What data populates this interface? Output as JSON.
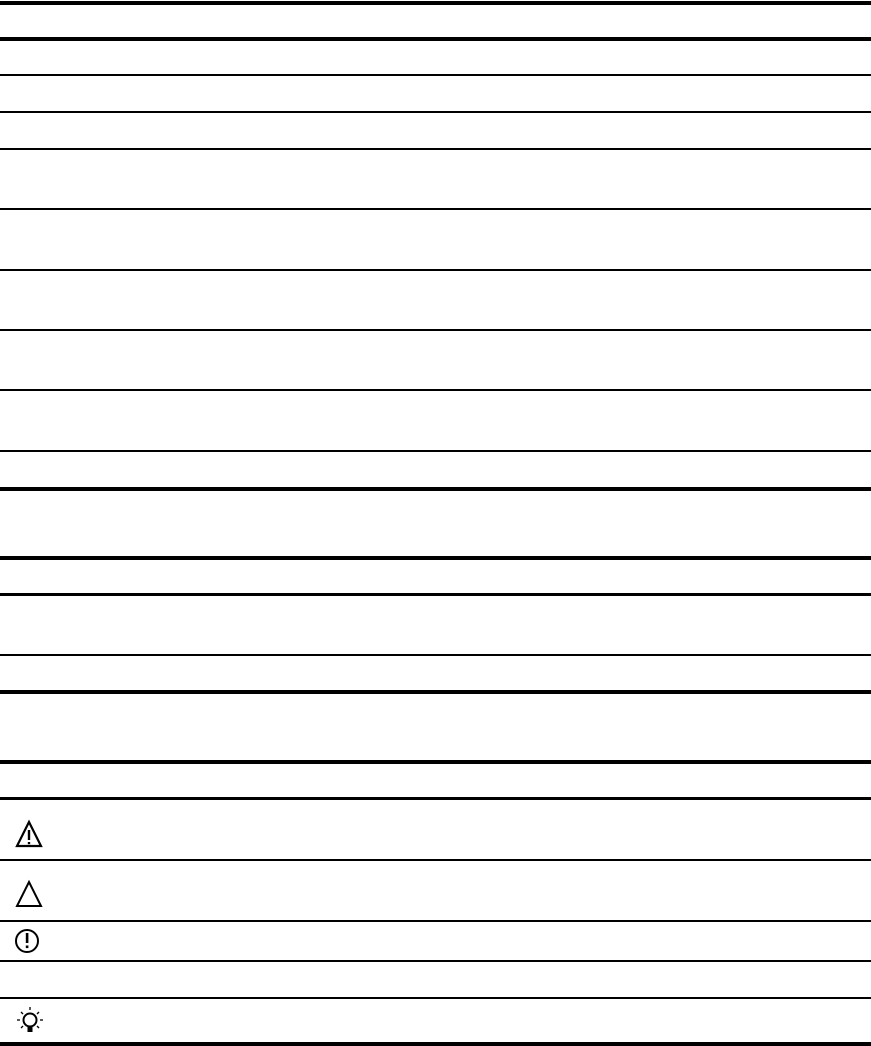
{
  "document": {
    "tables": [
      {
        "rows": 12
      },
      {
        "rows": 3
      },
      {
        "rows": 6
      }
    ],
    "notice_icons": [
      "warning-icon",
      "caution-icon",
      "important-icon",
      "",
      "tip-icon"
    ],
    "colors": {
      "rule": "#000000",
      "background": "#ffffff"
    }
  }
}
